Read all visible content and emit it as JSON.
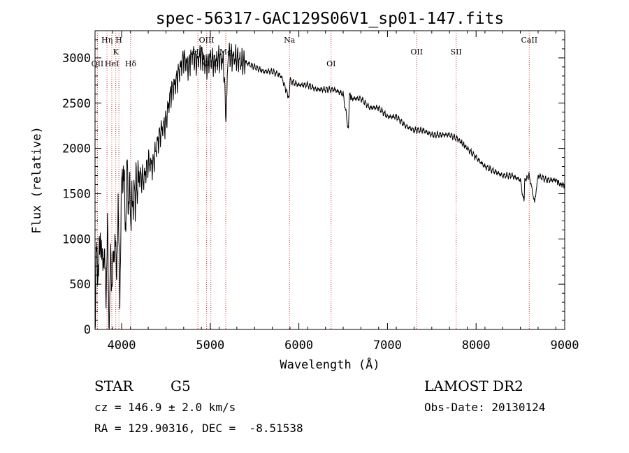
{
  "chart_data": {
    "type": "line",
    "title": "spec-56317-GAC129S06V1_sp01-147.fits",
    "xlabel": "Wavelength (Å)",
    "ylabel": "Flux (relative)",
    "xlim": [
      3700,
      9000
    ],
    "ylim": [
      0,
      3300
    ],
    "xticks": [
      4000,
      5000,
      6000,
      7000,
      8000,
      9000
    ],
    "yticks": [
      0,
      500,
      1000,
      1500,
      2000,
      2500,
      3000
    ],
    "grid": false,
    "series": [
      {
        "x": [
          3700,
          3720,
          3740,
          3760,
          3780,
          3800,
          3820,
          3840,
          3860,
          3880,
          3900,
          3920,
          3940,
          3960,
          3980,
          4000,
          4020,
          4040,
          4060,
          4080,
          4100,
          4150,
          4200,
          4250,
          4300,
          4350,
          4400,
          4450,
          4500,
          4550,
          4600,
          4650,
          4700,
          4750,
          4800,
          4850,
          4900,
          4950,
          5000,
          5050,
          5100,
          5150,
          5180,
          5200,
          5250,
          5300,
          5350,
          5400,
          5500,
          5600,
          5700,
          5800,
          5890,
          5900,
          6000,
          6100,
          6200,
          6300,
          6400,
          6500,
          6560,
          6570,
          6600,
          6700,
          6800,
          6900,
          7000,
          7100,
          7200,
          7300,
          7400,
          7500,
          7600,
          7700,
          7800,
          7850,
          7900,
          8000,
          8100,
          8200,
          8300,
          8400,
          8500,
          8540,
          8550,
          8600,
          8660,
          8700,
          8800,
          8900,
          8950,
          9000
        ],
        "y": [
          100,
          900,
          600,
          1100,
          700,
          900,
          400,
          1000,
          50,
          800,
          500,
          1100,
          600,
          1300,
          400,
          1600,
          1800,
          1200,
          1700,
          1500,
          1300,
          1500,
          1700,
          1650,
          1850,
          1800,
          2050,
          2200,
          2300,
          2600,
          2700,
          2850,
          3000,
          2900,
          3050,
          2950,
          3050,
          2900,
          3000,
          2950,
          3000,
          2950,
          2300,
          3050,
          3000,
          3000,
          2950,
          2950,
          2900,
          2850,
          2850,
          2800,
          2550,
          2750,
          2700,
          2700,
          2650,
          2650,
          2650,
          2600,
          2200,
          2600,
          2550,
          2550,
          2450,
          2450,
          2350,
          2350,
          2250,
          2200,
          2200,
          2150,
          2150,
          2150,
          2100,
          2050,
          2000,
          1900,
          1800,
          1750,
          1700,
          1700,
          1650,
          1400,
          1650,
          1700,
          1400,
          1700,
          1650,
          1650,
          1600,
          1600
        ]
      }
    ],
    "line_labels": [
      {
        "label": "OII",
        "wavelength": 3727,
        "row": 3
      },
      {
        "label": "Hη",
        "wavelength": 3835,
        "row": 1
      },
      {
        "label": "HeI",
        "wavelength": 3889,
        "row": 3
      },
      {
        "label": "K",
        "wavelength": 3934,
        "row": 2
      },
      {
        "label": "H",
        "wavelength": 3969,
        "row": 1
      },
      {
        "label": "Hδ",
        "wavelength": 4102,
        "row": 3
      },
      {
        "label": "Hβ",
        "wavelength": 4861,
        "row": 2
      },
      {
        "label": "OIII",
        "wavelength": 4959,
        "row": 1
      },
      {
        "label": "OIII",
        "wavelength": 5007,
        "row": 3
      },
      {
        "label": "Mg",
        "wavelength": 5175,
        "row": 2
      },
      {
        "label": "Na",
        "wavelength": 5894,
        "row": 1
      },
      {
        "label": "OI",
        "wavelength": 6364,
        "row": 3
      },
      {
        "label": "OII",
        "wavelength": 7330,
        "row": 2
      },
      {
        "label": "SII",
        "wavelength": 7775,
        "row": 2
      },
      {
        "label": "CaII",
        "wavelength": 8600,
        "row": 1
      }
    ]
  },
  "info": {
    "class": "STAR",
    "subclass": "G5",
    "survey": "LAMOST DR2",
    "cz": "cz = 146.9 ± 2.0 km/s",
    "obs_date": "Obs-Date: 20130124",
    "coords": "RA = 129.90316, DEC =  -8.51538"
  },
  "colors": {
    "spectrum": "#000000",
    "marker_lines": "#cc3333",
    "background": "#ffffff"
  }
}
